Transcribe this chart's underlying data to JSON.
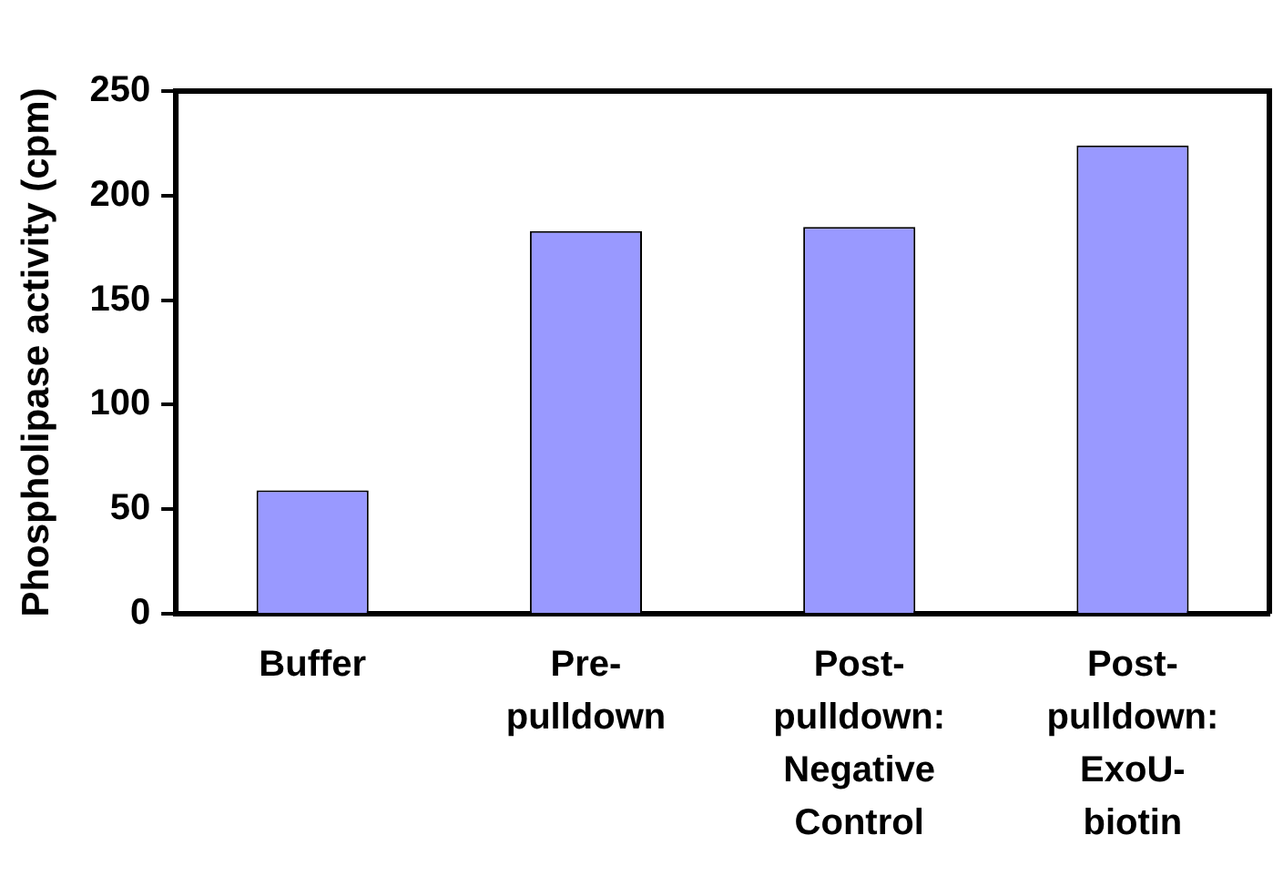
{
  "chart_data": {
    "type": "bar",
    "ylabel": "Phospholipase activity (cpm)",
    "categories": [
      "Buffer",
      "Pre-pulldown",
      "Post-pulldown: Negative Control",
      "Post-pulldown: ExoU-biotin"
    ],
    "values": [
      59,
      183,
      185,
      224
    ],
    "color": "#9999ff",
    "ylim": [
      0,
      250
    ],
    "yticks": [
      0,
      50,
      100,
      150,
      200,
      250
    ],
    "grid": false,
    "legend": false
  }
}
